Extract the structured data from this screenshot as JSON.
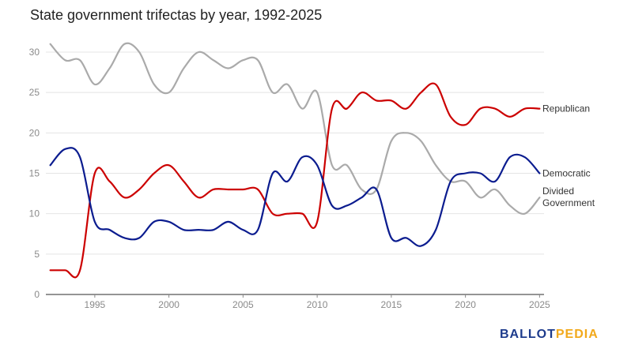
{
  "chart_data": {
    "type": "line",
    "title": "State government trifectas by year, 1992-2025",
    "xlabel": "",
    "ylabel": "",
    "xlim": [
      1991.7,
      2025.3
    ],
    "ylim": [
      0,
      30
    ],
    "x_ticks": [
      1995,
      2000,
      2005,
      2010,
      2015,
      2020,
      2025
    ],
    "y_ticks": [
      0,
      5,
      10,
      15,
      20,
      25,
      30
    ],
    "grid": true,
    "x": [
      1992,
      1993,
      1994,
      1995,
      1996,
      1997,
      1998,
      1999,
      2000,
      2001,
      2002,
      2003,
      2004,
      2005,
      2006,
      2007,
      2008,
      2009,
      2010,
      2011,
      2012,
      2013,
      2014,
      2015,
      2016,
      2017,
      2018,
      2019,
      2020,
      2021,
      2022,
      2023,
      2024,
      2025
    ],
    "series": [
      {
        "name": "Republican",
        "color": "#cc0000",
        "values": [
          3,
          3,
          3,
          15,
          14,
          12,
          13,
          15,
          16,
          14,
          12,
          13,
          13,
          13,
          13,
          10,
          10,
          10,
          9,
          23,
          23,
          25,
          24,
          24,
          23,
          25,
          26,
          22,
          21,
          23,
          23,
          22,
          23,
          23
        ]
      },
      {
        "name": "Democratic",
        "color": "#0b1c8f",
        "values": [
          16,
          18,
          17,
          9,
          8,
          7,
          7,
          9,
          9,
          8,
          8,
          8,
          9,
          8,
          8,
          15,
          14,
          17,
          16,
          11,
          11,
          12,
          13,
          7,
          7,
          6,
          8,
          14,
          15,
          15,
          14,
          17,
          17,
          15
        ]
      },
      {
        "name": "Divided\nGovernment",
        "label_lines": [
          "Divided",
          "Government"
        ],
        "color": "#aaaaaa",
        "values": [
          31,
          29,
          29,
          26,
          28,
          31,
          30,
          26,
          25,
          28,
          30,
          29,
          28,
          29,
          29,
          25,
          26,
          23,
          25,
          16,
          16,
          13,
          13,
          19,
          20,
          19,
          16,
          14,
          14,
          12,
          13,
          11,
          10,
          12
        ]
      }
    ]
  },
  "logo": {
    "part1": "BALLOT",
    "part2": "PEDIA"
  }
}
